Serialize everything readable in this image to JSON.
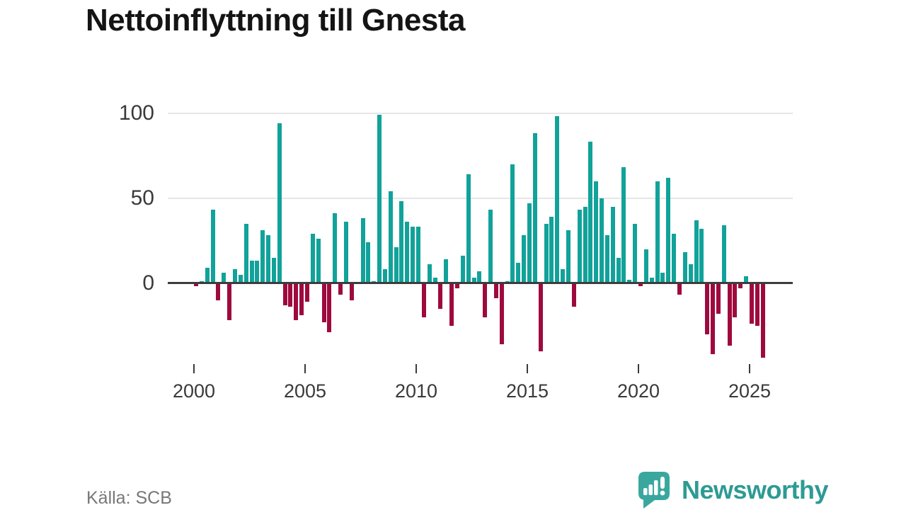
{
  "header": {
    "title": "Nettoinflyttning till Gnesta"
  },
  "footer": {
    "source": "Källa: SCB",
    "logo_text": "Newsworthy"
  },
  "colors": {
    "positive_bar": "#11a29a",
    "negative_bar": "#9e0a3e",
    "grid": "#e6e6e6",
    "zero_line": "#3d3d3d",
    "axis_text": "#3a3a3a",
    "title_text": "#141414",
    "source_text": "#777777",
    "logo_text": "#2d9b94",
    "logo_icon": "#3aa79f"
  },
  "chart_data": {
    "type": "bar",
    "title": "Nettoinflyttning till Gnesta",
    "xlabel": "",
    "ylabel": "",
    "frequency": "quarterly",
    "start_period": "2000Q1",
    "end_period": "2025Q3",
    "x_tick_years": [
      2000,
      2005,
      2010,
      2015,
      2020,
      2025
    ],
    "y_ticks": [
      0,
      50,
      100
    ],
    "ylim": [
      -50,
      105
    ],
    "grid": "horizontal",
    "legend": "none",
    "series": [
      {
        "name": "Nettoinflyttning",
        "values": [
          -2,
          1,
          9,
          43,
          -10,
          6,
          -22,
          8,
          5,
          35,
          13,
          13,
          31,
          28,
          15,
          94,
          -13,
          -14,
          -22,
          -19,
          -11,
          29,
          26,
          -23,
          -29,
          41,
          -7,
          36,
          -10,
          0,
          38,
          24,
          1,
          99,
          8,
          54,
          21,
          48,
          36,
          33,
          33,
          -20,
          11,
          3,
          -15,
          14,
          -25,
          -3,
          16,
          64,
          3,
          7,
          -20,
          43,
          -9,
          -36,
          1,
          70,
          12,
          28,
          47,
          88,
          -40,
          35,
          39,
          98,
          8,
          31,
          -14,
          43,
          45,
          83,
          60,
          50,
          28,
          45,
          15,
          68,
          2,
          35,
          -2,
          20,
          3,
          60,
          6,
          62,
          29,
          -7,
          18,
          11,
          37,
          32,
          -30,
          -42,
          -18,
          34,
          -37,
          -20,
          -3,
          4,
          -24,
          -25,
          -44
        ]
      }
    ]
  }
}
